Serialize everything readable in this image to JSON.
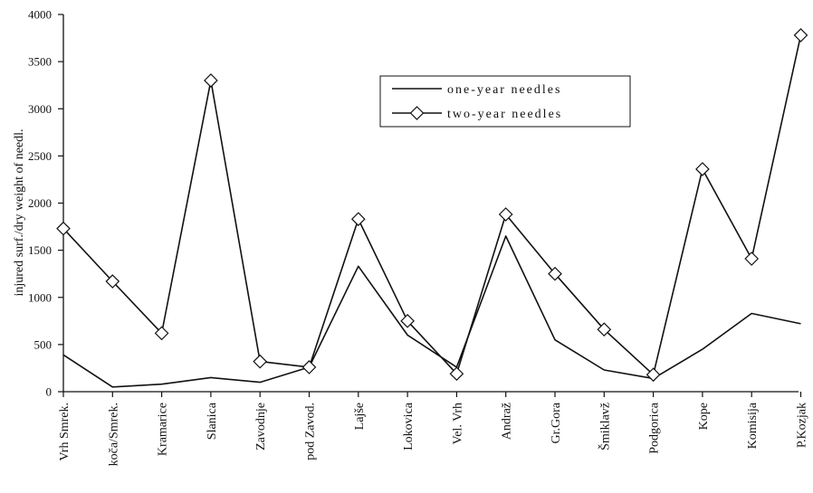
{
  "chart_data": {
    "type": "line",
    "title": "",
    "xlabel": "",
    "ylabel": "injured surf./dry weight of needl.",
    "ylim": [
      0,
      4000
    ],
    "yticks": [
      0,
      500,
      1000,
      1500,
      2000,
      2500,
      3000,
      3500,
      4000
    ],
    "grid": false,
    "legend_position": "top-right",
    "categories": [
      "Vrh Smrek.",
      "koča/Smrek.",
      "Kramarice",
      "Slanica",
      "Zavodnje",
      "pod Zavod.",
      "Lajše",
      "Lokovica",
      "Vel. Vrh",
      "Andraž",
      "Gr.Gora",
      "Šmiklavž",
      "Podgorica",
      "Kope",
      "Komisija",
      "P.Kozjak"
    ],
    "series": [
      {
        "name": "one-year needles",
        "marker": "none",
        "values": [
          390,
          50,
          80,
          150,
          100,
          260,
          1330,
          600,
          260,
          1650,
          550,
          230,
          140,
          450,
          830,
          720
        ]
      },
      {
        "name": "two-year needles",
        "marker": "diamond",
        "values": [
          1730,
          1170,
          620,
          3300,
          320,
          260,
          1830,
          750,
          190,
          1880,
          1250,
          660,
          180,
          2360,
          1410,
          3780
        ]
      }
    ]
  }
}
